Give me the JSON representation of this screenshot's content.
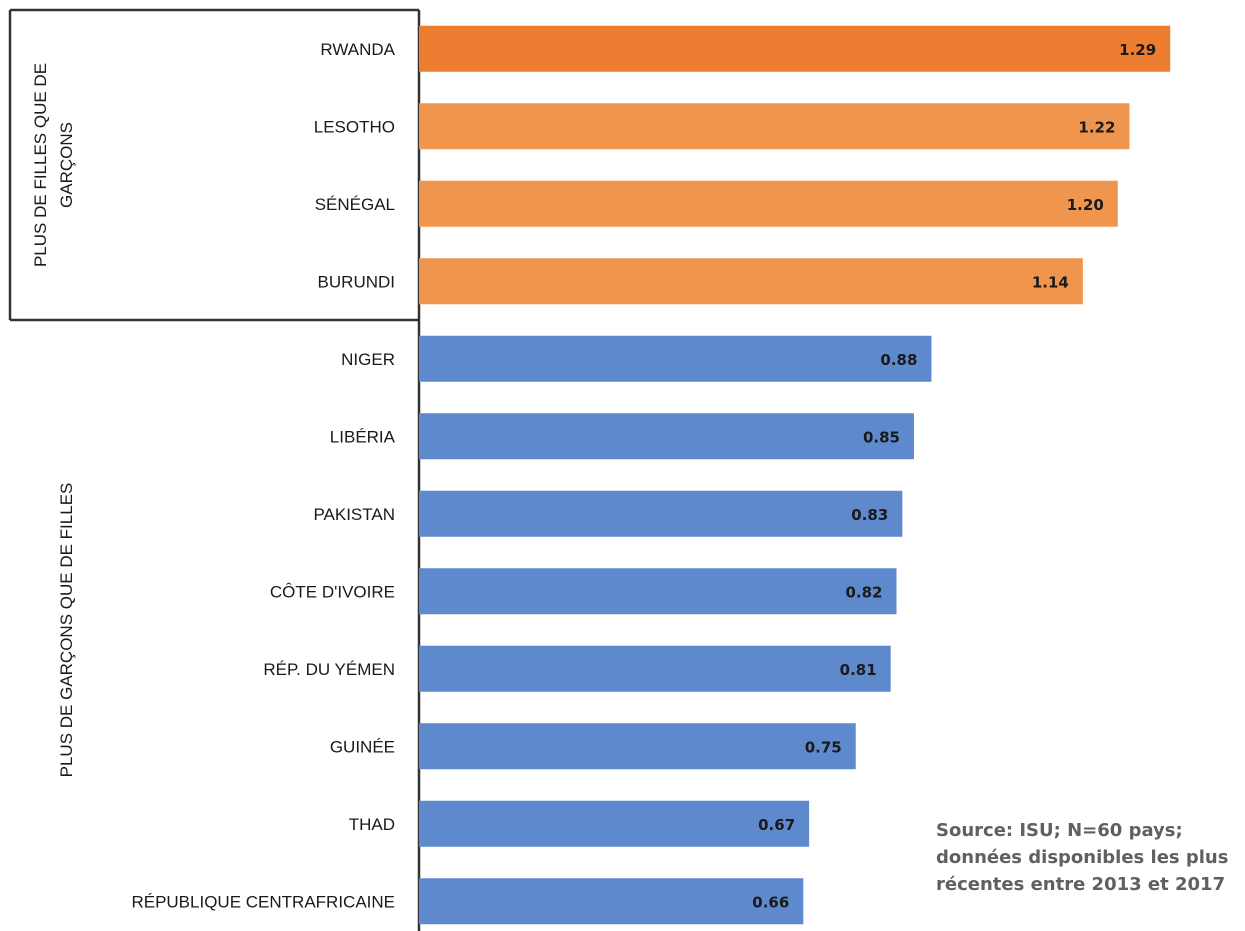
{
  "chart_data": {
    "type": "bar",
    "orientation": "horizontal",
    "categories": [
      "RWANDA",
      "LESOTHO",
      "SÉNÉGAL",
      "BURUNDI",
      "NIGER",
      "LIBÉRIA",
      "PAKISTAN",
      "CÔTE D'IVOIRE",
      "RÉP. DU YÉMEN",
      "GUINÉE",
      "THAD",
      "RÉPUBLIQUE CENTRAFRICAINE"
    ],
    "values": [
      1.29,
      1.22,
      1.2,
      1.14,
      0.88,
      0.85,
      0.83,
      0.82,
      0.81,
      0.75,
      0.67,
      0.66
    ],
    "value_labels": [
      "1.29",
      "1.22",
      "1.20",
      "1.14",
      "0.88",
      "0.85",
      "0.83",
      "0.82",
      "0.81",
      "0.75",
      "0.67",
      "0.66"
    ],
    "bar_colors": [
      "#ed7d31",
      "#f0954e",
      "#f0954e",
      "#f0954e",
      "#5f89cd",
      "#5f89cd",
      "#5f89cd",
      "#5f89cd",
      "#5f89cd",
      "#5f89cd",
      "#5f89cd",
      "#5f89cd"
    ],
    "groups": [
      {
        "label_lines": [
          "PLUS DE FILLES QUE DE",
          "GARÇONS"
        ],
        "start": 0,
        "end": 3
      },
      {
        "label_lines": [
          "PLUS DE GARÇONS QUE DE FILLES"
        ],
        "start": 4,
        "end": 11
      }
    ],
    "xlim": [
      0,
      1.3
    ],
    "grid": false,
    "legend": "none"
  },
  "source_note": "Source: ISU; N=60 pays; données disponibles les plus récentes entre 2013 et 2017"
}
